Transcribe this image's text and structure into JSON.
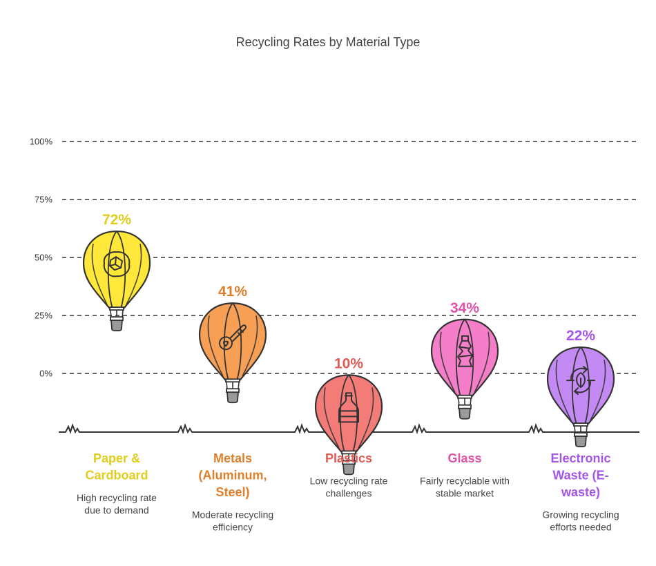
{
  "chart_data": {
    "type": "bar",
    "title": "Recycling Rates by Material Type",
    "ylim": [
      0,
      100
    ],
    "yticks": [
      "0%",
      "25%",
      "50%",
      "75%",
      "100%"
    ],
    "grid": true,
    "categories": [
      {
        "name_lines": [
          "Paper &",
          "Cardboard"
        ],
        "desc_lines": [
          "High recycling rate",
          "due to demand"
        ],
        "value": 72,
        "label": "72%",
        "color": "#ffe83a",
        "accent": "#e1cd1c",
        "icon": "crumpled-paper-icon"
      },
      {
        "name_lines": [
          "Metals",
          "(Aluminum,",
          "Steel)"
        ],
        "desc_lines": [
          "Moderate recycling",
          "efficiency"
        ],
        "value": 41,
        "label": "41%",
        "color": "#f7a055",
        "accent": "#e07f2a",
        "icon": "thermometer-icon"
      },
      {
        "name_lines": [
          "Plastics"
        ],
        "desc_lines": [
          "Low recycling rate",
          "challenges"
        ],
        "value": 10,
        "label": "10%",
        "color": "#f47c78",
        "accent": "#e35a55",
        "icon": "bottle-icon"
      },
      {
        "name_lines": [
          "Glass"
        ],
        "desc_lines": [
          "Fairly recyclable with",
          "stable market"
        ],
        "value": 34,
        "label": "34%",
        "color": "#f47fc8",
        "accent": "#e052a9",
        "icon": "crushed-bottle-icon"
      },
      {
        "name_lines": [
          "Electronic",
          "Waste (E-",
          "waste)"
        ],
        "desc_lines": [
          "Growing recycling",
          "efforts needed"
        ],
        "value": 22,
        "label": "22%",
        "color": "#c28af2",
        "accent": "#a655e6",
        "icon": "recycle-leaf-icon"
      }
    ]
  }
}
